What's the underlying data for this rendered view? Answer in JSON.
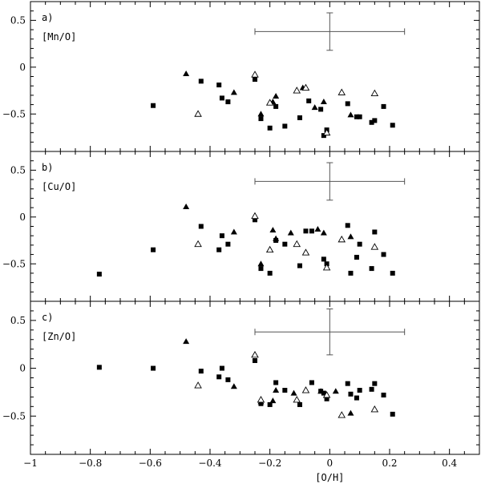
{
  "chart_data": {
    "type": "scatter",
    "xlabel": "[O/H]",
    "xlim": [
      -1,
      0.5
    ],
    "x_ticks": [
      -1,
      -0.8,
      -0.6,
      -0.4,
      -0.2,
      0,
      0.2,
      0.4
    ],
    "x_tick_labels": [
      "−1",
      "−0.8",
      "−0.6",
      "−0.4",
      "−0.2",
      "0",
      "0.2",
      "0.4"
    ],
    "panels": [
      {
        "tag": "a)",
        "ylabel": "[Mn/O]",
        "ylim": [
          -0.9,
          0.7
        ],
        "y_ticks": [
          0.5,
          0,
          -0.5
        ],
        "y_tick_labels": [
          "0.5",
          "0",
          "−0.5"
        ],
        "error_bar": {
          "x": 0,
          "y": 0.38,
          "xerr": 0.25,
          "yerr": 0.2
        },
        "series": [
          {
            "marker": "filled-square",
            "points": [
              [
                -0.59,
                -0.41
              ],
              [
                -0.43,
                -0.15
              ],
              [
                -0.37,
                -0.19
              ],
              [
                -0.36,
                -0.33
              ],
              [
                -0.34,
                -0.37
              ],
              [
                -0.25,
                -0.13
              ],
              [
                -0.23,
                -0.55
              ],
              [
                -0.2,
                -0.65
              ],
              [
                -0.18,
                -0.42
              ],
              [
                -0.15,
                -0.63
              ],
              [
                -0.1,
                -0.54
              ],
              [
                -0.07,
                -0.36
              ],
              [
                -0.03,
                -0.45
              ],
              [
                -0.02,
                -0.73
              ],
              [
                -0.01,
                -0.67
              ],
              [
                0.06,
                -0.39
              ],
              [
                0.09,
                -0.53
              ],
              [
                0.1,
                -0.53
              ],
              [
                0.14,
                -0.59
              ],
              [
                0.15,
                -0.57
              ],
              [
                0.18,
                -0.42
              ],
              [
                0.21,
                -0.62
              ]
            ]
          },
          {
            "marker": "filled-triangle",
            "points": [
              [
                -0.48,
                -0.07
              ],
              [
                -0.32,
                -0.27
              ],
              [
                -0.23,
                -0.5
              ],
              [
                -0.19,
                -0.37
              ],
              [
                -0.18,
                -0.31
              ],
              [
                -0.09,
                -0.22
              ],
              [
                -0.05,
                -0.43
              ],
              [
                -0.02,
                -0.37
              ],
              [
                0.07,
                -0.51
              ]
            ]
          },
          {
            "marker": "open-triangle",
            "points": [
              [
                -0.44,
                -0.5
              ],
              [
                -0.25,
                -0.08
              ],
              [
                -0.2,
                -0.38
              ],
              [
                -0.11,
                -0.25
              ],
              [
                -0.08,
                -0.22
              ],
              [
                -0.01,
                -0.7
              ],
              [
                0.04,
                -0.27
              ],
              [
                0.15,
                -0.28
              ]
            ]
          }
        ]
      },
      {
        "tag": "b)",
        "ylabel": "[Cu/O]",
        "ylim": [
          -0.9,
          0.7
        ],
        "y_ticks": [
          0.5,
          0,
          -0.5
        ],
        "y_tick_labels": [
          "0.5",
          "0",
          "−0.5"
        ],
        "error_bar": {
          "x": 0,
          "y": 0.38,
          "xerr": 0.25,
          "yerr": 0.2
        },
        "series": [
          {
            "marker": "filled-square",
            "points": [
              [
                -0.77,
                -0.61
              ],
              [
                -0.59,
                -0.35
              ],
              [
                -0.43,
                -0.1
              ],
              [
                -0.37,
                -0.35
              ],
              [
                -0.36,
                -0.2
              ],
              [
                -0.34,
                -0.29
              ],
              [
                -0.25,
                -0.03
              ],
              [
                -0.23,
                -0.55
              ],
              [
                -0.2,
                -0.6
              ],
              [
                -0.18,
                -0.25
              ],
              [
                -0.15,
                -0.29
              ],
              [
                -0.1,
                -0.52
              ],
              [
                -0.08,
                -0.15
              ],
              [
                -0.06,
                -0.15
              ],
              [
                -0.02,
                -0.45
              ],
              [
                -0.01,
                -0.5
              ],
              [
                0.06,
                -0.09
              ],
              [
                0.07,
                -0.6
              ],
              [
                0.09,
                -0.43
              ],
              [
                0.1,
                -0.29
              ],
              [
                0.14,
                -0.55
              ],
              [
                0.15,
                -0.16
              ],
              [
                0.18,
                -0.4
              ],
              [
                0.21,
                -0.6
              ]
            ]
          },
          {
            "marker": "filled-triangle",
            "points": [
              [
                -0.48,
                0.11
              ],
              [
                -0.32,
                -0.16
              ],
              [
                -0.23,
                -0.5
              ],
              [
                -0.19,
                -0.14
              ],
              [
                -0.18,
                -0.23
              ],
              [
                -0.13,
                -0.17
              ],
              [
                -0.04,
                -0.13
              ],
              [
                -0.02,
                -0.17
              ],
              [
                0.07,
                -0.21
              ]
            ]
          },
          {
            "marker": "open-triangle",
            "points": [
              [
                -0.44,
                -0.29
              ],
              [
                -0.25,
                0.01
              ],
              [
                -0.2,
                -0.35
              ],
              [
                -0.11,
                -0.29
              ],
              [
                -0.08,
                -0.38
              ],
              [
                -0.01,
                -0.54
              ],
              [
                0.04,
                -0.24
              ],
              [
                0.15,
                -0.32
              ]
            ]
          }
        ]
      },
      {
        "tag": "c)",
        "ylabel": "[Zn/O]",
        "ylim": [
          -0.9,
          0.7
        ],
        "y_ticks": [
          0.5,
          0,
          -0.5
        ],
        "y_tick_labels": [
          "0.5",
          "0",
          "−0.5"
        ],
        "error_bar": {
          "x": 0,
          "y": 0.38,
          "xerr": 0.25,
          "yerr": 0.24
        },
        "series": [
          {
            "marker": "filled-square",
            "points": [
              [
                -0.77,
                0.01
              ],
              [
                -0.59,
                0.0
              ],
              [
                -0.43,
                -0.03
              ],
              [
                -0.37,
                -0.09
              ],
              [
                -0.36,
                0.0
              ],
              [
                -0.34,
                -0.12
              ],
              [
                -0.25,
                0.08
              ],
              [
                -0.23,
                -0.37
              ],
              [
                -0.2,
                -0.38
              ],
              [
                -0.18,
                -0.15
              ],
              [
                -0.15,
                -0.23
              ],
              [
                -0.1,
                -0.38
              ],
              [
                -0.06,
                -0.15
              ],
              [
                -0.03,
                -0.24
              ],
              [
                -0.02,
                -0.26
              ],
              [
                -0.01,
                -0.32
              ],
              [
                0.06,
                -0.16
              ],
              [
                0.07,
                -0.27
              ],
              [
                0.09,
                -0.31
              ],
              [
                0.1,
                -0.23
              ],
              [
                0.14,
                -0.22
              ],
              [
                0.15,
                -0.16
              ],
              [
                0.18,
                -0.28
              ],
              [
                0.21,
                -0.48
              ]
            ]
          },
          {
            "marker": "filled-triangle",
            "points": [
              [
                -0.48,
                0.28
              ],
              [
                -0.32,
                -0.19
              ],
              [
                -0.23,
                -0.35
              ],
              [
                -0.19,
                -0.34
              ],
              [
                -0.18,
                -0.23
              ],
              [
                -0.12,
                -0.26
              ],
              [
                -0.03,
                -0.24
              ],
              [
                0.02,
                -0.24
              ],
              [
                0.07,
                -0.47
              ]
            ]
          },
          {
            "marker": "open-triangle",
            "points": [
              [
                -0.44,
                -0.18
              ],
              [
                -0.25,
                0.14
              ],
              [
                -0.23,
                -0.33
              ],
              [
                -0.11,
                -0.33
              ],
              [
                -0.08,
                -0.23
              ],
              [
                -0.01,
                -0.28
              ],
              [
                0.04,
                -0.49
              ],
              [
                0.15,
                -0.43
              ]
            ]
          }
        ]
      }
    ]
  }
}
